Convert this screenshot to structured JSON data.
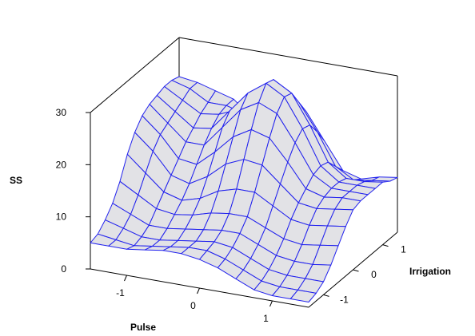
{
  "chart_data": {
    "type": "surface",
    "title": "",
    "xlabel": "Pulse",
    "ylabel": "Irrigation",
    "zlabel": "SS",
    "x_ticks": [
      "-1",
      "0",
      "1"
    ],
    "y_ticks": [
      "-1",
      "0",
      "1"
    ],
    "z_ticks": [
      "0",
      "10",
      "20",
      "30"
    ],
    "xlim": [
      -1.5,
      1.5
    ],
    "ylim": [
      -1.5,
      1.5
    ],
    "zlim": [
      0,
      30
    ],
    "grid_x": [
      -1.5,
      -1.25,
      -1.0,
      -0.75,
      -0.5,
      -0.25,
      0.0,
      0.25,
      0.5,
      0.75,
      1.0,
      1.25,
      1.5
    ],
    "grid_y": [
      -1.5,
      -1.25,
      -1.0,
      -0.75,
      -0.5,
      -0.25,
      0.0,
      0.25,
      0.5,
      0.75,
      1.0,
      1.25,
      1.5
    ],
    "z_values": [
      [
        5.0,
        5.5,
        7.0,
        9.0,
        12.0,
        16.0,
        19.0,
        21.0,
        22.0,
        22.5,
        23.0,
        23.0,
        22.5
      ],
      [
        5.0,
        5.0,
        6.0,
        7.5,
        10.0,
        13.0,
        16.0,
        18.0,
        19.0,
        20.0,
        21.0,
        22.0,
        22.0
      ],
      [
        5.0,
        4.5,
        5.0,
        6.0,
        8.0,
        10.0,
        12.0,
        14.0,
        16.0,
        17.5,
        19.0,
        20.0,
        21.0
      ],
      [
        5.5,
        5.0,
        5.0,
        6.0,
        7.5,
        9.0,
        11.0,
        13.5,
        16.0,
        18.0,
        19.5,
        20.0,
        20.0
      ],
      [
        6.0,
        5.5,
        5.5,
        6.5,
        8.0,
        10.0,
        13.0,
        16.5,
        20.0,
        22.0,
        21.0,
        19.0,
        17.0
      ],
      [
        6.0,
        6.0,
        6.0,
        7.0,
        9.0,
        12.0,
        16.0,
        20.0,
        24.0,
        26.0,
        25.0,
        22.0,
        19.0
      ],
      [
        5.5,
        6.0,
        6.5,
        7.5,
        9.5,
        13.0,
        17.5,
        22.0,
        26.0,
        28.5,
        28.0,
        25.0,
        22.0
      ],
      [
        4.5,
        5.0,
        6.0,
        7.5,
        9.5,
        13.0,
        17.0,
        21.0,
        24.5,
        26.5,
        26.0,
        23.0,
        20.0
      ],
      [
        3.0,
        3.5,
        4.5,
        6.0,
        8.0,
        11.0,
        14.0,
        17.0,
        19.5,
        21.0,
        20.5,
        18.0,
        15.0
      ],
      [
        1.5,
        2.0,
        3.0,
        4.5,
        6.5,
        9.0,
        11.0,
        12.5,
        14.0,
        14.5,
        14.0,
        12.0,
        10.0
      ],
      [
        1.0,
        1.5,
        2.5,
        4.0,
        6.0,
        8.5,
        10.5,
        11.5,
        12.0,
        12.0,
        11.5,
        10.0,
        9.0
      ],
      [
        1.0,
        1.5,
        2.5,
        4.0,
        6.5,
        9.0,
        11.0,
        12.0,
        12.0,
        12.0,
        11.5,
        10.5,
        10.0
      ],
      [
        1.0,
        1.5,
        2.5,
        4.5,
        7.0,
        9.5,
        11.5,
        12.0,
        12.0,
        12.0,
        12.0,
        11.0,
        10.5
      ]
    ],
    "grid": false,
    "legend": "none"
  }
}
